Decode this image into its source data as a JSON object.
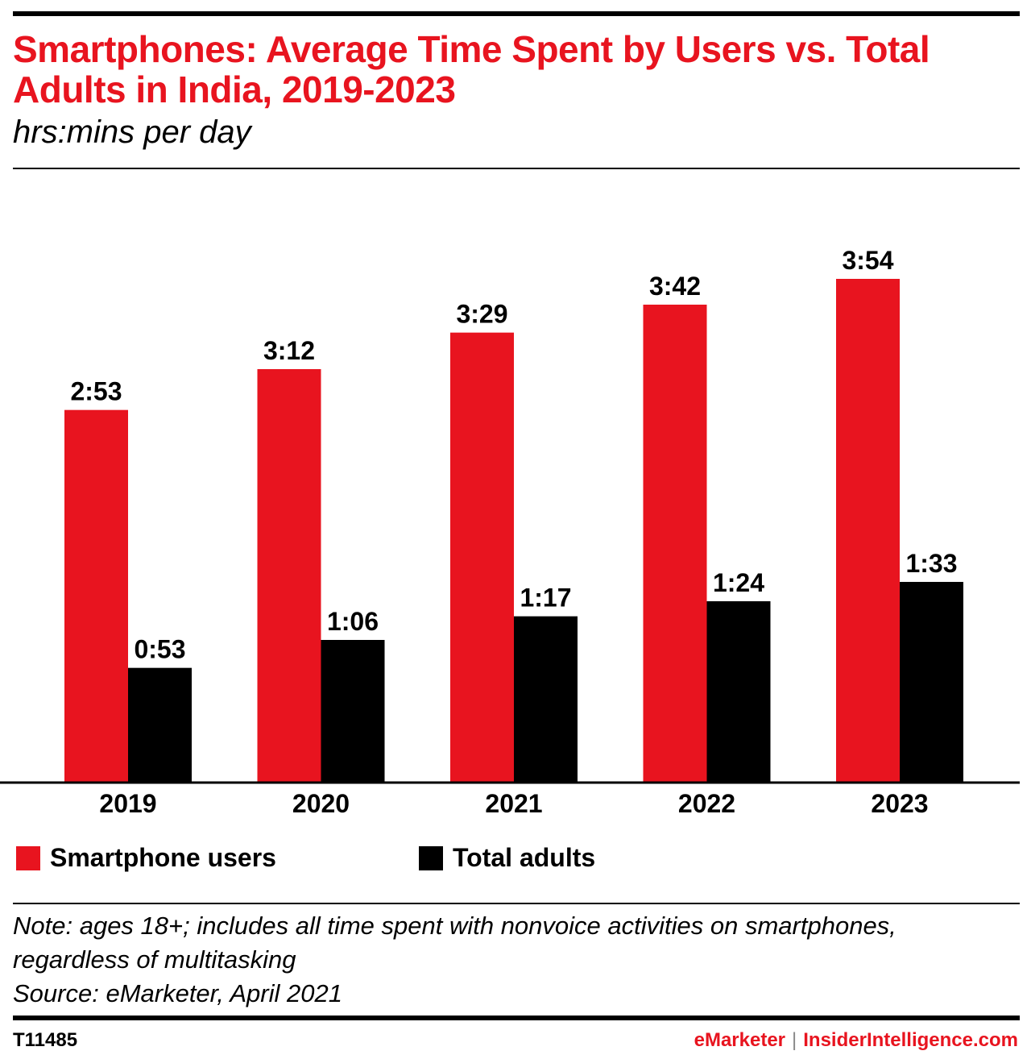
{
  "title": "Smartphones: Average Time Spent by Users vs. Total Adults in India, 2019-2023",
  "subtitle": "hrs:mins per day",
  "colors": {
    "accent": "#e8141f",
    "dark": "#000000"
  },
  "chart_data": {
    "type": "bar",
    "categories": [
      "2019",
      "2020",
      "2021",
      "2022",
      "2023"
    ],
    "series": [
      {
        "name": "Smartphone users",
        "color": "#e8141f",
        "values": [
          173,
          192,
          209,
          222,
          234
        ],
        "labels": [
          "2:53",
          "3:12",
          "3:29",
          "3:42",
          "3:54"
        ]
      },
      {
        "name": "Total adults",
        "color": "#000000",
        "values": [
          53,
          66,
          77,
          84,
          93
        ],
        "labels": [
          "0:53",
          "1:06",
          "1:17",
          "1:24",
          "1:33"
        ]
      }
    ],
    "value_unit": "minutes per day",
    "ylim": [
      0,
      270
    ],
    "grid": false,
    "legend": "bottom-left"
  },
  "note": "Note: ages 18+; includes all time spent with nonvoice activities on smartphones, regardless of multitasking",
  "source": "Source: eMarketer, April 2021",
  "footer": {
    "id": "T11485",
    "brand_a": "eMarketer",
    "separator": "|",
    "brand_b": "InsiderIntelligence.com"
  }
}
